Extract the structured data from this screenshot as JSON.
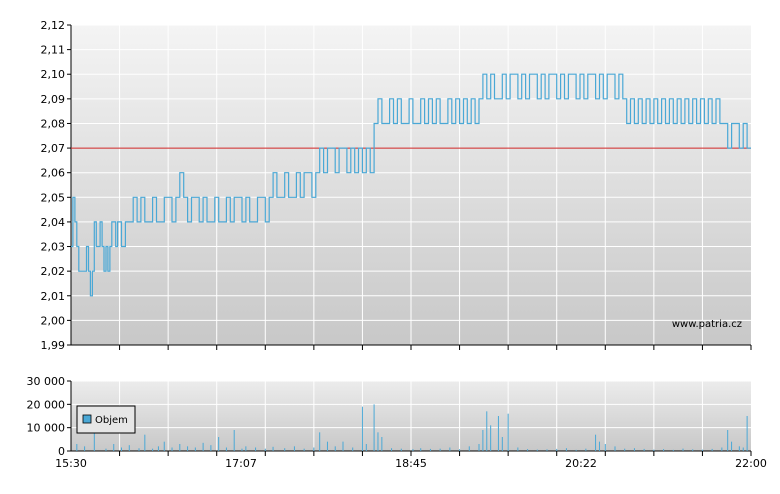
{
  "watermark": "www.patria.cz",
  "colors": {
    "price_line": "#4aa8d6",
    "reference_line": "#cc2222",
    "volume_bars": "#4aa8d6",
    "grid": "#ffffff",
    "axis": "#000000"
  },
  "chart_data": [
    {
      "type": "line",
      "title": "",
      "xlabel": "",
      "ylabel": "",
      "ylim": [
        1.99,
        2.12
      ],
      "yticks": [
        "2,12",
        "2,11",
        "2,10",
        "2,09",
        "2,08",
        "2,07",
        "2,06",
        "2,05",
        "2,04",
        "2,03",
        "2,02",
        "2,01",
        "2,00",
        "1,99"
      ],
      "reference_line": 2.07,
      "grid": true,
      "x_unit": "minutes since 15:30",
      "points": [
        [
          0,
          2.03
        ],
        [
          1,
          2.05
        ],
        [
          2,
          2.04
        ],
        [
          3,
          2.03
        ],
        [
          4,
          2.02
        ],
        [
          6,
          2.02
        ],
        [
          7,
          2.02
        ],
        [
          8,
          2.03
        ],
        [
          9,
          2.02
        ],
        [
          10,
          2.01
        ],
        [
          11,
          2.02
        ],
        [
          12,
          2.04
        ],
        [
          13,
          2.03
        ],
        [
          14,
          2.03
        ],
        [
          15,
          2.04
        ],
        [
          16,
          2.03
        ],
        [
          17,
          2.02
        ],
        [
          18,
          2.03
        ],
        [
          19,
          2.02
        ],
        [
          20,
          2.03
        ],
        [
          21,
          2.04
        ],
        [
          22,
          2.04
        ],
        [
          23,
          2.03
        ],
        [
          24,
          2.04
        ],
        [
          25,
          2.04
        ],
        [
          26,
          2.03
        ],
        [
          27,
          2.03
        ],
        [
          28,
          2.04
        ],
        [
          30,
          2.04
        ],
        [
          32,
          2.05
        ],
        [
          34,
          2.04
        ],
        [
          36,
          2.05
        ],
        [
          38,
          2.04
        ],
        [
          40,
          2.04
        ],
        [
          42,
          2.05
        ],
        [
          44,
          2.04
        ],
        [
          46,
          2.04
        ],
        [
          48,
          2.05
        ],
        [
          50,
          2.05
        ],
        [
          52,
          2.04
        ],
        [
          54,
          2.05
        ],
        [
          56,
          2.06
        ],
        [
          58,
          2.05
        ],
        [
          60,
          2.04
        ],
        [
          62,
          2.05
        ],
        [
          64,
          2.05
        ],
        [
          66,
          2.04
        ],
        [
          68,
          2.05
        ],
        [
          70,
          2.04
        ],
        [
          72,
          2.04
        ],
        [
          74,
          2.05
        ],
        [
          76,
          2.04
        ],
        [
          78,
          2.04
        ],
        [
          80,
          2.05
        ],
        [
          82,
          2.04
        ],
        [
          84,
          2.05
        ],
        [
          86,
          2.05
        ],
        [
          88,
          2.04
        ],
        [
          90,
          2.05
        ],
        [
          92,
          2.04
        ],
        [
          94,
          2.04
        ],
        [
          96,
          2.05
        ],
        [
          98,
          2.05
        ],
        [
          100,
          2.04
        ],
        [
          102,
          2.05
        ],
        [
          104,
          2.06
        ],
        [
          106,
          2.05
        ],
        [
          108,
          2.05
        ],
        [
          110,
          2.06
        ],
        [
          112,
          2.05
        ],
        [
          114,
          2.05
        ],
        [
          116,
          2.06
        ],
        [
          118,
          2.05
        ],
        [
          120,
          2.06
        ],
        [
          122,
          2.06
        ],
        [
          124,
          2.05
        ],
        [
          126,
          2.06
        ],
        [
          128,
          2.07
        ],
        [
          130,
          2.06
        ],
        [
          132,
          2.07
        ],
        [
          134,
          2.07
        ],
        [
          136,
          2.06
        ],
        [
          138,
          2.07
        ],
        [
          140,
          2.07
        ],
        [
          142,
          2.06
        ],
        [
          144,
          2.07
        ],
        [
          146,
          2.06
        ],
        [
          148,
          2.07
        ],
        [
          150,
          2.06
        ],
        [
          152,
          2.07
        ],
        [
          154,
          2.06
        ],
        [
          156,
          2.08
        ],
        [
          158,
          2.09
        ],
        [
          160,
          2.08
        ],
        [
          162,
          2.08
        ],
        [
          164,
          2.09
        ],
        [
          166,
          2.08
        ],
        [
          168,
          2.09
        ],
        [
          170,
          2.08
        ],
        [
          172,
          2.08
        ],
        [
          174,
          2.09
        ],
        [
          176,
          2.08
        ],
        [
          178,
          2.08
        ],
        [
          180,
          2.09
        ],
        [
          182,
          2.08
        ],
        [
          184,
          2.09
        ],
        [
          186,
          2.08
        ],
        [
          188,
          2.09
        ],
        [
          190,
          2.08
        ],
        [
          192,
          2.08
        ],
        [
          194,
          2.09
        ],
        [
          196,
          2.08
        ],
        [
          198,
          2.09
        ],
        [
          200,
          2.08
        ],
        [
          202,
          2.09
        ],
        [
          204,
          2.08
        ],
        [
          206,
          2.09
        ],
        [
          208,
          2.08
        ],
        [
          210,
          2.09
        ],
        [
          212,
          2.1
        ],
        [
          214,
          2.09
        ],
        [
          216,
          2.1
        ],
        [
          218,
          2.09
        ],
        [
          220,
          2.09
        ],
        [
          222,
          2.1
        ],
        [
          224,
          2.09
        ],
        [
          226,
          2.1
        ],
        [
          228,
          2.1
        ],
        [
          230,
          2.09
        ],
        [
          232,
          2.1
        ],
        [
          234,
          2.09
        ],
        [
          236,
          2.1
        ],
        [
          238,
          2.1
        ],
        [
          240,
          2.09
        ],
        [
          242,
          2.1
        ],
        [
          244,
          2.09
        ],
        [
          246,
          2.1
        ],
        [
          248,
          2.1
        ],
        [
          250,
          2.09
        ],
        [
          252,
          2.1
        ],
        [
          254,
          2.09
        ],
        [
          256,
          2.1
        ],
        [
          258,
          2.1
        ],
        [
          260,
          2.09
        ],
        [
          262,
          2.1
        ],
        [
          264,
          2.09
        ],
        [
          266,
          2.1
        ],
        [
          268,
          2.1
        ],
        [
          270,
          2.09
        ],
        [
          272,
          2.1
        ],
        [
          274,
          2.09
        ],
        [
          276,
          2.1
        ],
        [
          278,
          2.1
        ],
        [
          280,
          2.09
        ],
        [
          282,
          2.1
        ],
        [
          284,
          2.09
        ],
        [
          286,
          2.08
        ],
        [
          288,
          2.09
        ],
        [
          290,
          2.08
        ],
        [
          292,
          2.09
        ],
        [
          294,
          2.08
        ],
        [
          296,
          2.09
        ],
        [
          298,
          2.08
        ],
        [
          300,
          2.09
        ],
        [
          302,
          2.08
        ],
        [
          304,
          2.09
        ],
        [
          306,
          2.08
        ],
        [
          308,
          2.09
        ],
        [
          310,
          2.08
        ],
        [
          312,
          2.09
        ],
        [
          314,
          2.08
        ],
        [
          316,
          2.09
        ],
        [
          318,
          2.08
        ],
        [
          320,
          2.09
        ],
        [
          322,
          2.08
        ],
        [
          324,
          2.09
        ],
        [
          326,
          2.08
        ],
        [
          328,
          2.09
        ],
        [
          330,
          2.08
        ],
        [
          332,
          2.09
        ],
        [
          334,
          2.08
        ],
        [
          336,
          2.08
        ],
        [
          338,
          2.07
        ],
        [
          340,
          2.08
        ],
        [
          342,
          2.08
        ],
        [
          344,
          2.07
        ],
        [
          346,
          2.08
        ],
        [
          348,
          2.07
        ],
        [
          350,
          2.07
        ]
      ]
    },
    {
      "type": "bar",
      "title": "",
      "legend": "Objem",
      "legend_position": "top-left",
      "ylim": [
        0,
        30000
      ],
      "yticks": [
        "30 000",
        "20 000",
        "10 000",
        "0"
      ],
      "xticks": [
        "15:30",
        "17:07",
        "18:45",
        "20:22",
        "22:00"
      ],
      "x_unit": "minutes since 15:30",
      "grid": true,
      "bars": [
        [
          3,
          3000
        ],
        [
          7,
          2000
        ],
        [
          12,
          8000
        ],
        [
          18,
          1000
        ],
        [
          22,
          3000
        ],
        [
          26,
          1500
        ],
        [
          30,
          2500
        ],
        [
          35,
          1200
        ],
        [
          38,
          7000
        ],
        [
          42,
          1000
        ],
        [
          45,
          2000
        ],
        [
          48,
          4000
        ],
        [
          52,
          1500
        ],
        [
          56,
          3000
        ],
        [
          60,
          2000
        ],
        [
          64,
          1500
        ],
        [
          68,
          3500
        ],
        [
          72,
          2500
        ],
        [
          76,
          6000
        ],
        [
          80,
          1500
        ],
        [
          84,
          9000
        ],
        [
          88,
          1000
        ],
        [
          90,
          2000
        ],
        [
          95,
          1500
        ],
        [
          100,
          1000
        ],
        [
          104,
          1800
        ],
        [
          110,
          1200
        ],
        [
          115,
          2000
        ],
        [
          120,
          1000
        ],
        [
          125,
          1500
        ],
        [
          128,
          8000
        ],
        [
          132,
          4000
        ],
        [
          136,
          2000
        ],
        [
          140,
          4000
        ],
        [
          145,
          1500
        ],
        [
          150,
          19000
        ],
        [
          152,
          3000
        ],
        [
          156,
          20000
        ],
        [
          158,
          8000
        ],
        [
          160,
          6000
        ],
        [
          165,
          1200
        ],
        [
          170,
          1000
        ],
        [
          176,
          800
        ],
        [
          180,
          1200
        ],
        [
          185,
          900
        ],
        [
          190,
          1000
        ],
        [
          195,
          1500
        ],
        [
          200,
          800
        ],
        [
          205,
          2000
        ],
        [
          210,
          3000
        ],
        [
          212,
          9000
        ],
        [
          214,
          17000
        ],
        [
          216,
          11000
        ],
        [
          220,
          15000
        ],
        [
          222,
          6000
        ],
        [
          225,
          16000
        ],
        [
          230,
          1500
        ],
        [
          235,
          800
        ],
        [
          240,
          600
        ],
        [
          245,
          700
        ],
        [
          250,
          900
        ],
        [
          255,
          1200
        ],
        [
          260,
          500
        ],
        [
          265,
          1000
        ],
        [
          270,
          7000
        ],
        [
          272,
          4000
        ],
        [
          275,
          3000
        ],
        [
          280,
          2000
        ],
        [
          285,
          1000
        ],
        [
          290,
          1200
        ],
        [
          295,
          900
        ],
        [
          300,
          600
        ],
        [
          305,
          800
        ],
        [
          310,
          500
        ],
        [
          315,
          1000
        ],
        [
          320,
          700
        ],
        [
          325,
          600
        ],
        [
          330,
          900
        ],
        [
          335,
          1500
        ],
        [
          338,
          9000
        ],
        [
          340,
          4000
        ],
        [
          344,
          2000
        ],
        [
          346,
          1500
        ],
        [
          348,
          15000
        ]
      ]
    }
  ]
}
